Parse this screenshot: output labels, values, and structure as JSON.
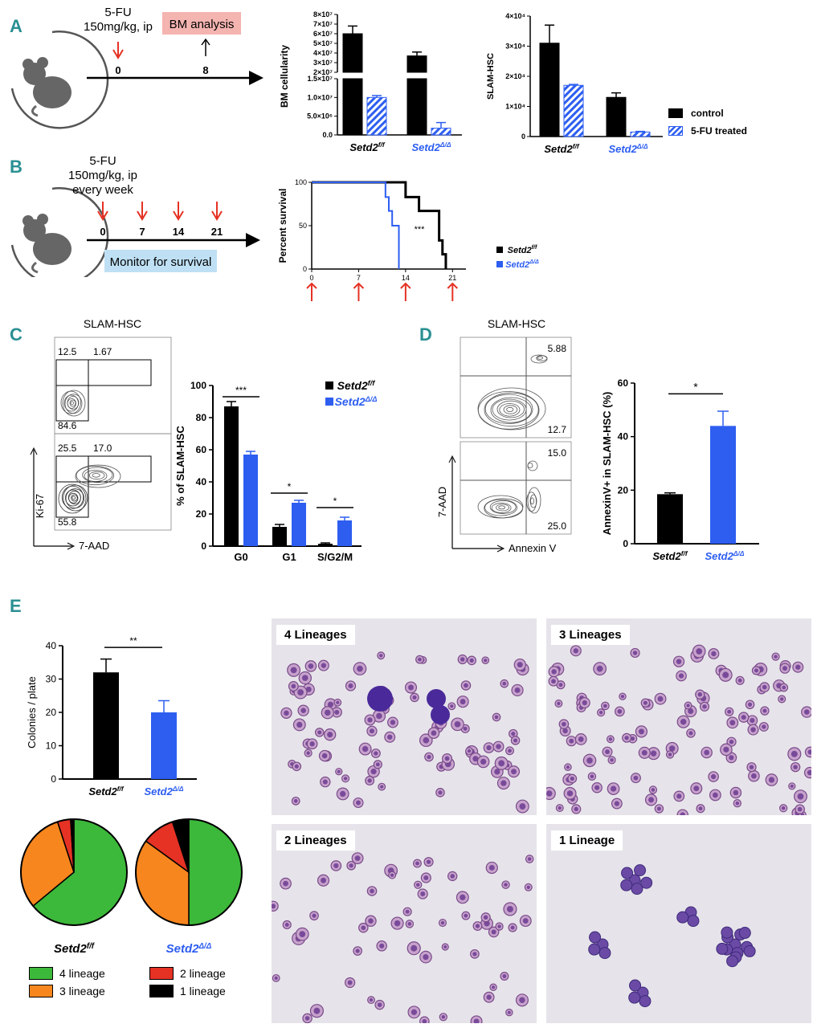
{
  "panels": {
    "a": "A",
    "b": "B",
    "c": "C",
    "d": "D",
    "e": "E"
  },
  "colors": {
    "black": "#000000",
    "blue": "#2d5ef0",
    "red": "#e53224",
    "label": "#2a8f93",
    "pink": "#f4b4b0",
    "lightblue": "#bfe0f4",
    "green": "#3cb93a",
    "orange": "#f7861e"
  },
  "schematic_a": {
    "drug": "5-FU",
    "dose": "150mg/kg, ip",
    "box_label": "BM analysis",
    "day0": "0",
    "day8": "8"
  },
  "schematic_b": {
    "drug": "5-FU",
    "dose": "150mg/kg, ip",
    "freq": "every week",
    "days": [
      "0",
      "7",
      "14",
      "21"
    ],
    "box_label": "Monitor for survival"
  },
  "legend_a": {
    "control": "control",
    "treated": "5-FU treated"
  },
  "genotypes": {
    "ff": "Setd2",
    "ff_sup": "f/f",
    "dd": "Setd2",
    "dd_sup": "Δ/Δ"
  },
  "chart_data": [
    {
      "id": "bm-cellularity",
      "type": "bar",
      "ylabel": "BM cellularity",
      "categories": [
        "Setd2f/f",
        "Setd2Δ/Δ"
      ],
      "series": [
        {
          "name": "control",
          "values": [
            60000000,
            37000000
          ],
          "errors": [
            8000000,
            4000000
          ]
        },
        {
          "name": "5-FU treated",
          "values": [
            10000000,
            1800000
          ],
          "errors": [
            500000,
            1500000
          ]
        }
      ],
      "yticks_lower": [
        "0.0",
        "5.0×10⁶",
        "1.0×10⁷",
        "1.5×10⁷"
      ],
      "yticks_upper": [
        "2×10⁷",
        "3×10⁷",
        "4×10⁷",
        "5×10⁷",
        "6×10⁷",
        "7×10⁷",
        "8×10⁷"
      ],
      "axis_break": [
        15000000,
        20000000
      ]
    },
    {
      "id": "slam-hsc-count",
      "type": "bar",
      "ylabel": "SLAM-HSC",
      "categories": [
        "Setd2f/f",
        "Setd2Δ/Δ"
      ],
      "series": [
        {
          "name": "control",
          "values": [
            31000,
            13000
          ],
          "errors": [
            6000,
            1500
          ]
        },
        {
          "name": "5-FU treated",
          "values": [
            17000,
            1500
          ],
          "errors": [
            300,
            200
          ]
        }
      ],
      "yticks": [
        "0",
        "1×10⁴",
        "2×10⁴",
        "3×10⁴",
        "4×10⁴"
      ],
      "ylim": [
        0,
        40000
      ]
    },
    {
      "id": "survival",
      "type": "line",
      "ylabel": "Percent survival",
      "xticks": [
        "0",
        "7",
        "14",
        "21"
      ],
      "yticks": [
        "0",
        "50",
        "100"
      ],
      "sig": "***",
      "series": [
        {
          "name": "Setd2f/f",
          "points": [
            [
              0,
              100
            ],
            [
              14,
              100
            ],
            [
              14,
              83
            ],
            [
              16,
              83
            ],
            [
              16,
              67
            ],
            [
              19,
              67
            ],
            [
              19,
              33
            ],
            [
              19.5,
              33
            ],
            [
              19.5,
              17
            ],
            [
              20,
              17
            ],
            [
              20,
              0
            ]
          ]
        },
        {
          "name": "Setd2Δ/Δ",
          "points": [
            [
              0,
              100
            ],
            [
              11,
              100
            ],
            [
              11,
              83
            ],
            [
              11.5,
              83
            ],
            [
              11.5,
              67
            ],
            [
              12,
              67
            ],
            [
              12,
              50
            ],
            [
              13,
              50
            ],
            [
              13,
              0
            ]
          ]
        }
      ]
    },
    {
      "id": "cell-cycle",
      "type": "bar",
      "ylabel": "% of SLAM-HSC",
      "categories": [
        "G0",
        "G1",
        "S/G2/M"
      ],
      "ylim": [
        0,
        100
      ],
      "yticks": [
        "0",
        "20",
        "40",
        "60",
        "80",
        "100"
      ],
      "series": [
        {
          "name": "Setd2f/f",
          "values": [
            87,
            12,
            1.5
          ],
          "errors": [
            3,
            1.5,
            0.5
          ]
        },
        {
          "name": "Setd2Δ/Δ",
          "values": [
            57,
            27,
            16
          ],
          "errors": [
            2,
            1.5,
            2
          ]
        }
      ],
      "sig": [
        "***",
        "*",
        "*"
      ]
    },
    {
      "id": "annexin",
      "type": "bar",
      "ylabel": "AnnexinV+ in SLAM-HSC (%)",
      "categories": [
        "Setd2f/f",
        "Setd2Δ/Δ"
      ],
      "ylim": [
        0,
        60
      ],
      "yticks": [
        "0",
        "20",
        "40",
        "60"
      ],
      "values": [
        18.5,
        44
      ],
      "errors": [
        0.5,
        5.5
      ],
      "sig": "*"
    },
    {
      "id": "colonies",
      "type": "bar",
      "ylabel": "Colonies / plate",
      "categories": [
        "Setd2f/f",
        "Setd2Δ/Δ"
      ],
      "ylim": [
        0,
        40
      ],
      "yticks": [
        "0",
        "10",
        "20",
        "30",
        "40"
      ],
      "values": [
        32,
        20
      ],
      "errors": [
        4,
        3.5
      ],
      "sig": "**"
    },
    {
      "id": "lineage-pie-ff",
      "type": "pie",
      "labels": [
        "4 lineage",
        "3 lineage",
        "2 lineage",
        "1 lineage"
      ],
      "values": [
        64,
        31,
        4,
        1
      ]
    },
    {
      "id": "lineage-pie-dd",
      "type": "pie",
      "labels": [
        "4 lineage",
        "3 lineage",
        "2 lineage",
        "1 lineage"
      ],
      "values": [
        50,
        35,
        10,
        5
      ]
    }
  ],
  "flow_c": {
    "title": "SLAM-HSC",
    "top": {
      "q1": "12.5",
      "q2": "1.67",
      "q3": "84.6"
    },
    "bottom": {
      "q1": "25.5",
      "q2": "17.0",
      "q3": "55.8"
    },
    "yaxis": "Ki-67",
    "xaxis": "7-AAD"
  },
  "flow_d": {
    "title": "SLAM-HSC",
    "top": {
      "ur": "5.88",
      "lr": "12.7"
    },
    "bottom": {
      "ur": "15.0",
      "lr": "25.0"
    },
    "yaxis": "7-AAD",
    "xaxis": "Annexin V"
  },
  "micrographs": [
    "4 Lineages",
    "3 Lineages",
    "2 Lineages",
    "1 Lineage"
  ]
}
